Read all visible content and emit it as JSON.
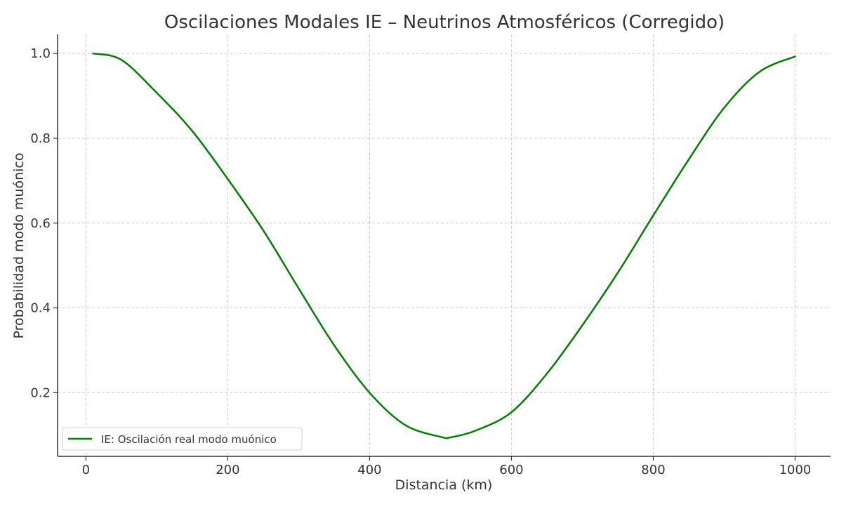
{
  "chart_data": {
    "type": "line",
    "title": "Oscilaciones Modales IE – Neutrinos Atmosféricos (Corregido)",
    "xlabel": "Distancia (km)",
    "ylabel": "Probabilidad modo muónico",
    "xlim": [
      -40,
      1050
    ],
    "ylim": [
      0.05,
      1.045
    ],
    "x_ticks": [
      0,
      200,
      400,
      600,
      800,
      1000
    ],
    "y_ticks": [
      0.2,
      0.4,
      0.6,
      0.8,
      1.0
    ],
    "x_tick_labels": [
      "0",
      "200",
      "400",
      "600",
      "800",
      "1000"
    ],
    "y_tick_labels": [
      "0.2",
      "0.4",
      "0.6",
      "0.8",
      "1.0"
    ],
    "grid": true,
    "legend_position": "bottom-left",
    "series": [
      {
        "name": "IE: Oscilación real modo muónico",
        "color": "#008000",
        "x": [
          10,
          50,
          100,
          150,
          200,
          250,
          300,
          350,
          400,
          450,
          500,
          515,
          550,
          600,
          650,
          700,
          750,
          800,
          850,
          900,
          950,
          1000
        ],
        "y": [
          1.0,
          0.985,
          0.907,
          0.817,
          0.704,
          0.583,
          0.446,
          0.312,
          0.2,
          0.124,
          0.096,
          0.095,
          0.111,
          0.154,
          0.245,
          0.359,
          0.483,
          0.618,
          0.75,
          0.872,
          0.957,
          0.993
        ]
      }
    ]
  }
}
